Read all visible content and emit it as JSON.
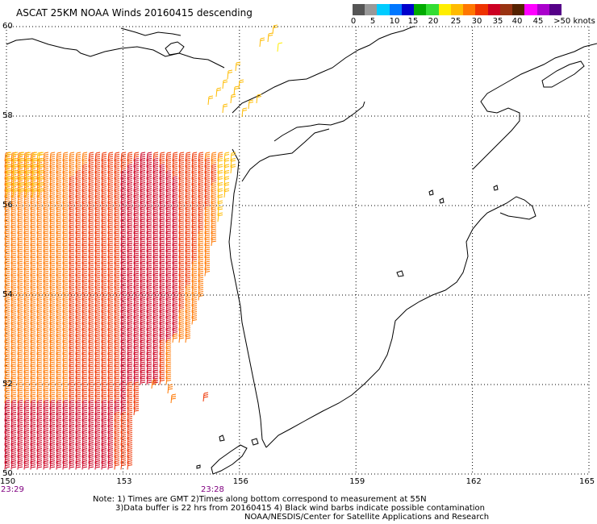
{
  "title": "ASCAT 25KM NOAA Winds 20160415 descending",
  "legend": {
    "colors": [
      "#555555",
      "#999999",
      "#00ccff",
      "#0077ff",
      "#0000cc",
      "#00aa00",
      "#33dd33",
      "#ffee00",
      "#ffbb00",
      "#ff7700",
      "#ee3300",
      "#cc0022",
      "#993311",
      "#552200",
      "#ff00ff",
      "#aa00cc",
      "#550088"
    ],
    "labels": [
      "0",
      "5",
      "10",
      "15",
      "20",
      "25",
      "30",
      "35",
      "40",
      "45",
      ">50 knots"
    ],
    "label_values": [
      0,
      5,
      10,
      15,
      20,
      25,
      30,
      35,
      40,
      45,
      50
    ]
  },
  "map": {
    "lon_range": [
      150,
      165
    ],
    "lat_range": [
      50,
      60
    ],
    "gridlines": "dotted",
    "lat_labels": [
      "60",
      "58",
      "56",
      "54",
      "52",
      "50"
    ],
    "lat_values": [
      60,
      58,
      56,
      54,
      52,
      50
    ],
    "lon_labels": [
      "150",
      "153",
      "156",
      "159",
      "162",
      "165"
    ],
    "lon_values": [
      150,
      153,
      156,
      159,
      162,
      165
    ],
    "time_labels": [
      "23:29",
      "23:28"
    ],
    "coastline_color": "#000000"
  },
  "notes": [
    "Note: 1) Times are GMT 2)Times along bottom correspond to measurement at 55N",
    "3)Data buffer is 22 hrs from 20160415 4) Black wind barbs indicate possible contamination",
    "NOAA/NESDIS/Center for Satellite Applications and Research"
  ]
}
